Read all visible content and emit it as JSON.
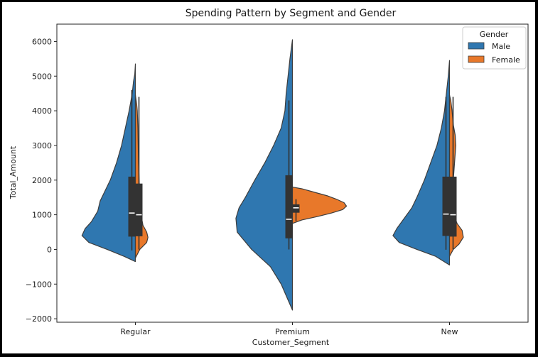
{
  "chart_data": {
    "type": "violin",
    "split": true,
    "title": "Spending Pattern by Segment and Gender",
    "xlabel": "Customer_Segment",
    "ylabel": "Total_Amount",
    "categories": [
      "Regular",
      "Premium",
      "New"
    ],
    "ylim": [
      -2100,
      6500
    ],
    "yticks": [
      -2000,
      -1000,
      0,
      1000,
      2000,
      3000,
      4000,
      5000,
      6000
    ],
    "grid": false,
    "legend": {
      "title": "Gender",
      "placement": "top-right",
      "entries": [
        "Male",
        "Female"
      ]
    },
    "colors": {
      "Male": "#2f77b0",
      "Female": "#e8782a",
      "box": "#333333",
      "outline": "#3d3d3d",
      "median": "#ffffff"
    },
    "series": [
      {
        "name": "Male",
        "violins": [
          {
            "category": "Regular",
            "profile": [
              [
                -350,
                0
              ],
              [
                -200,
                0.18
              ],
              [
                0,
                0.45
              ],
              [
                200,
                0.74
              ],
              [
                400,
                0.85
              ],
              [
                600,
                0.8
              ],
              [
                800,
                0.7
              ],
              [
                1100,
                0.6
              ],
              [
                1400,
                0.56
              ],
              [
                1700,
                0.48
              ],
              [
                2000,
                0.4
              ],
              [
                2500,
                0.3
              ],
              [
                3000,
                0.22
              ],
              [
                3500,
                0.16
              ],
              [
                4000,
                0.1
              ],
              [
                4500,
                0.05
              ],
              [
                4850,
                0.03
              ],
              [
                5050,
                0.01
              ],
              [
                5350,
                0
              ]
            ],
            "box": {
              "q1": 370,
              "median": 1050,
              "q3": 2100,
              "whisker_low": -30,
              "whisker_high": 4600
            }
          },
          {
            "category": "Premium",
            "profile": [
              [
                -1750,
                0
              ],
              [
                -1500,
                0.06
              ],
              [
                -1000,
                0.18
              ],
              [
                -500,
                0.35
              ],
              [
                0,
                0.65
              ],
              [
                500,
                0.88
              ],
              [
                900,
                0.9
              ],
              [
                1200,
                0.85
              ],
              [
                1500,
                0.75
              ],
              [
                2000,
                0.6
              ],
              [
                2500,
                0.44
              ],
              [
                3000,
                0.3
              ],
              [
                3500,
                0.18
              ],
              [
                4000,
                0.12
              ],
              [
                4500,
                0.1
              ],
              [
                5000,
                0.07
              ],
              [
                5500,
                0.04
              ],
              [
                6050,
                0
              ]
            ],
            "box": {
              "q1": 320,
              "median": 870,
              "q3": 2140,
              "whisker_low": 0,
              "whisker_high": 4300
            }
          },
          {
            "category": "New",
            "profile": [
              [
                -450,
                0
              ],
              [
                -200,
                0.22
              ],
              [
                0,
                0.52
              ],
              [
                200,
                0.8
              ],
              [
                400,
                0.9
              ],
              [
                600,
                0.84
              ],
              [
                900,
                0.72
              ],
              [
                1200,
                0.6
              ],
              [
                1500,
                0.52
              ],
              [
                2000,
                0.4
              ],
              [
                2500,
                0.3
              ],
              [
                3000,
                0.2
              ],
              [
                3500,
                0.13
              ],
              [
                4000,
                0.08
              ],
              [
                4500,
                0.05
              ],
              [
                5000,
                0.02
              ],
              [
                5450,
                0
              ]
            ],
            "box": {
              "q1": 390,
              "median": 1020,
              "q3": 2100,
              "whisker_low": -10,
              "whisker_high": 4400
            }
          }
        ]
      },
      {
        "name": "Female",
        "violins": [
          {
            "category": "Regular",
            "profile": [
              [
                -250,
                0
              ],
              [
                0,
                0.07
              ],
              [
                200,
                0.18
              ],
              [
                350,
                0.2
              ],
              [
                500,
                0.18
              ],
              [
                700,
                0.12
              ],
              [
                1000,
                0.09
              ],
              [
                1500,
                0.07
              ],
              [
                2000,
                0.06
              ],
              [
                2500,
                0.05
              ],
              [
                3000,
                0.045
              ],
              [
                3500,
                0.04
              ],
              [
                4000,
                0.03
              ],
              [
                4200,
                0.02
              ],
              [
                4450,
                0
              ]
            ],
            "box": {
              "q1": 380,
              "median": 1000,
              "q3": 1900,
              "whisker_low": 0,
              "whisker_high": 4400
            }
          },
          {
            "category": "Premium",
            "profile": [
              [
                750,
                0
              ],
              [
                850,
                0.15
              ],
              [
                950,
                0.4
              ],
              [
                1050,
                0.62
              ],
              [
                1150,
                0.8
              ],
              [
                1250,
                0.86
              ],
              [
                1350,
                0.82
              ],
              [
                1450,
                0.7
              ],
              [
                1550,
                0.55
              ],
              [
                1650,
                0.35
              ],
              [
                1750,
                0.15
              ],
              [
                1800,
                0
              ]
            ],
            "box": {
              "q1": 1060,
              "median": 1200,
              "q3": 1300,
              "whisker_low": 820,
              "whisker_high": 1450
            }
          },
          {
            "category": "New",
            "profile": [
              [
                -200,
                0
              ],
              [
                0,
                0.06
              ],
              [
                150,
                0.15
              ],
              [
                350,
                0.22
              ],
              [
                550,
                0.2
              ],
              [
                750,
                0.12
              ],
              [
                1000,
                0.07
              ],
              [
                1500,
                0.06
              ],
              [
                2000,
                0.06
              ],
              [
                2500,
                0.08
              ],
              [
                3000,
                0.1
              ],
              [
                3300,
                0.09
              ],
              [
                3600,
                0.06
              ],
              [
                4000,
                0.04
              ],
              [
                4300,
                0.02
              ],
              [
                4450,
                0
              ]
            ],
            "box": {
              "q1": 370,
              "median": 1000,
              "q3": 2100,
              "whisker_low": 0,
              "whisker_high": 4400
            }
          }
        ]
      }
    ]
  }
}
